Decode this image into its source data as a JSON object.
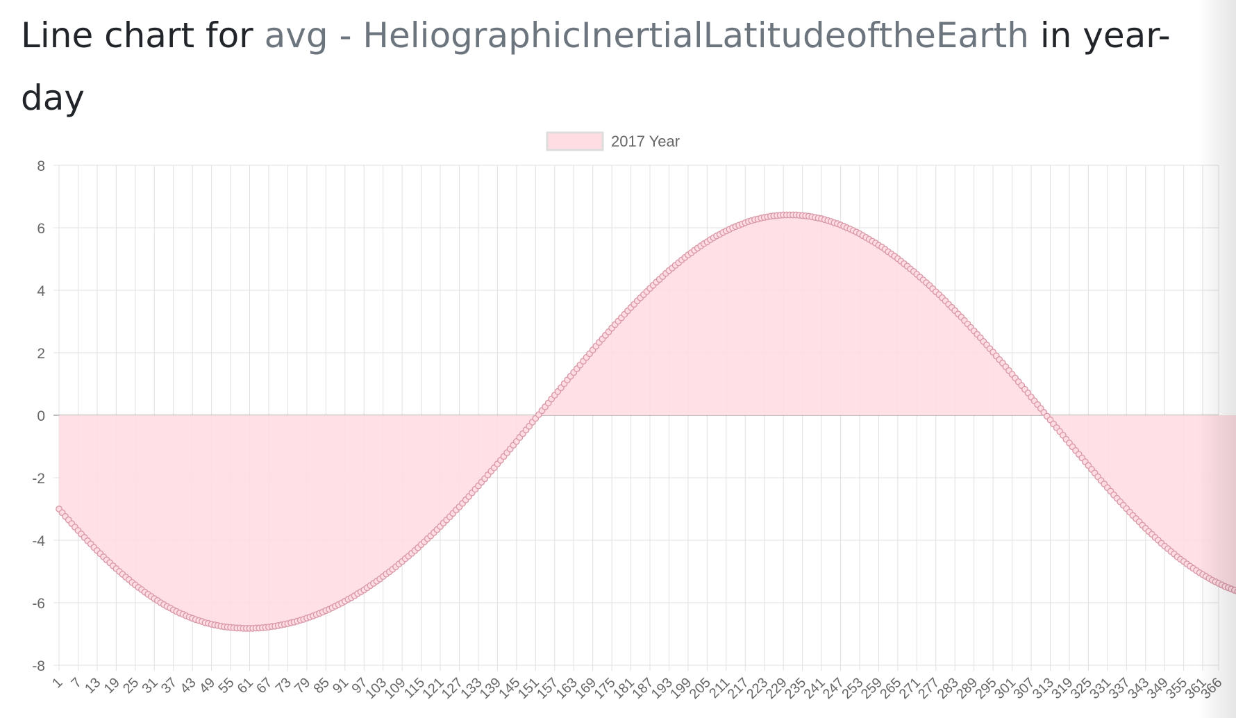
{
  "title": {
    "prefix": "Line chart for ",
    "metric": "avg - HeliographicInertialLatitudeoftheEarth",
    "suffix": " in year-day"
  },
  "colors": {
    "fill": "#ffdde3",
    "line": "#e8a7b5",
    "point": "#d99aaa",
    "grid": "#e0e0e0",
    "zero_line": "#9a9a9a",
    "tick_text": "#666666"
  },
  "chart_data": {
    "type": "area",
    "legend": {
      "label": "2017 Year",
      "position": "top"
    },
    "x": {
      "min": 1,
      "max": 366,
      "tick_step": 6,
      "last_tick": 366
    },
    "ylim": [
      -8,
      8
    ],
    "yticks": [
      8,
      6,
      4,
      2,
      0,
      -2,
      -4,
      -6,
      -8
    ],
    "grid": true,
    "series": [
      {
        "name": "2017 Year",
        "values": [
          -3.0,
          -3.12,
          -3.24,
          -3.35,
          -3.47,
          -3.58,
          -3.69,
          -3.8,
          -3.91,
          -4.02,
          -4.12,
          -4.23,
          -4.33,
          -4.43,
          -4.53,
          -4.63,
          -4.72,
          -4.82,
          -4.91,
          -5.0,
          -5.09,
          -5.18,
          -5.26,
          -5.35,
          -5.43,
          -5.51,
          -5.58,
          -5.66,
          -5.73,
          -5.8,
          -5.87,
          -5.93,
          -6.0,
          -6.06,
          -6.12,
          -6.17,
          -6.23,
          -6.28,
          -6.33,
          -6.37,
          -6.42,
          -6.46,
          -6.5,
          -6.54,
          -6.57,
          -6.6,
          -6.64,
          -6.66,
          -6.69,
          -6.71,
          -6.73,
          -6.75,
          -6.77,
          -6.78,
          -6.79,
          -6.8,
          -6.81,
          -6.81,
          -6.82,
          -6.82,
          -6.82,
          -6.82,
          -6.81,
          -6.81,
          -6.8,
          -6.79,
          -6.78,
          -6.76,
          -6.75,
          -6.73,
          -6.71,
          -6.69,
          -6.67,
          -6.64,
          -6.62,
          -6.59,
          -6.56,
          -6.53,
          -6.49,
          -6.46,
          -6.42,
          -6.38,
          -6.34,
          -6.3,
          -6.25,
          -6.21,
          -6.16,
          -6.11,
          -6.06,
          -6.01,
          -5.95,
          -5.89,
          -5.84,
          -5.78,
          -5.71,
          -5.65,
          -5.59,
          -5.52,
          -5.45,
          -5.38,
          -5.31,
          -5.24,
          -5.16,
          -5.08,
          -5.01,
          -4.93,
          -4.85,
          -4.76,
          -4.68,
          -4.59,
          -4.51,
          -4.42,
          -4.33,
          -4.24,
          -4.14,
          -4.05,
          -3.95,
          -3.86,
          -3.76,
          -3.66,
          -3.56,
          -3.45,
          -3.35,
          -3.25,
          -3.14,
          -3.03,
          -2.93,
          -2.82,
          -2.71,
          -2.6,
          -2.48,
          -2.37,
          -2.26,
          -2.14,
          -2.03,
          -1.91,
          -1.79,
          -1.68,
          -1.56,
          -1.44,
          -1.32,
          -1.2,
          -1.08,
          -0.96,
          -0.84,
          -0.71,
          -0.59,
          -0.47,
          -0.35,
          -0.22,
          -0.1,
          0.02,
          0.15,
          0.27,
          0.39,
          0.52,
          0.64,
          0.76,
          0.88,
          1.01,
          1.13,
          1.25,
          1.37,
          1.49,
          1.61,
          1.73,
          1.85,
          1.97,
          2.09,
          2.21,
          2.33,
          2.44,
          2.56,
          2.67,
          2.79,
          2.9,
          3.01,
          3.12,
          3.23,
          3.34,
          3.45,
          3.55,
          3.66,
          3.76,
          3.86,
          3.96,
          4.06,
          4.16,
          4.26,
          4.35,
          4.44,
          4.54,
          4.63,
          4.71,
          4.8,
          4.88,
          4.97,
          5.05,
          5.13,
          5.2,
          5.28,
          5.35,
          5.42,
          5.49,
          5.55,
          5.62,
          5.68,
          5.74,
          5.79,
          5.85,
          5.9,
          5.95,
          6.0,
          6.04,
          6.08,
          6.12,
          6.16,
          6.2,
          6.23,
          6.26,
          6.28,
          6.31,
          6.33,
          6.35,
          6.37,
          6.38,
          6.39,
          6.4,
          6.41,
          6.41,
          6.41,
          6.41,
          6.41,
          6.4,
          6.39,
          6.38,
          6.37,
          6.35,
          6.33,
          6.31,
          6.29,
          6.26,
          6.23,
          6.2,
          6.16,
          6.13,
          6.09,
          6.05,
          6.0,
          5.96,
          5.91,
          5.86,
          5.81,
          5.75,
          5.69,
          5.63,
          5.57,
          5.51,
          5.44,
          5.38,
          5.31,
          5.23,
          5.16,
          5.09,
          5.01,
          4.93,
          4.85,
          4.77,
          4.68,
          4.6,
          4.51,
          4.42,
          4.33,
          4.24,
          4.15,
          4.05,
          3.95,
          3.86,
          3.76,
          3.66,
          3.55,
          3.45,
          3.35,
          3.24,
          3.14,
          3.03,
          2.92,
          2.81,
          2.7,
          2.59,
          2.48,
          2.36,
          2.25,
          2.13,
          2.02,
          1.9,
          1.78,
          1.67,
          1.55,
          1.43,
          1.31,
          1.19,
          1.07,
          0.95,
          0.83,
          0.71,
          0.58,
          0.46,
          0.34,
          0.22,
          0.09,
          -0.03,
          -0.15,
          -0.28,
          -0.4,
          -0.52,
          -0.64,
          -0.77,
          -0.89,
          -1.01,
          -1.13,
          -1.25,
          -1.37,
          -1.49,
          -1.61,
          -1.73,
          -1.85,
          -1.97,
          -2.09,
          -2.2,
          -2.32,
          -2.43,
          -2.55,
          -2.66,
          -2.77,
          -2.88,
          -2.99,
          -3.1,
          -3.21,
          -3.31,
          -3.41,
          -3.52,
          -3.62,
          -3.72,
          -3.81,
          -3.91,
          -4.0,
          -4.1,
          -4.19,
          -4.27,
          -4.36,
          -4.44,
          -4.53,
          -4.61,
          -4.68,
          -4.76,
          -4.83,
          -4.9,
          -4.97,
          -5.04,
          -5.1,
          -5.16,
          -5.22,
          -5.28,
          -5.33,
          -5.38,
          -5.43,
          -5.48,
          -5.52,
          -5.56,
          -5.6,
          -5.64,
          -5.67,
          -5.7,
          -5.73,
          -5.75,
          -5.77,
          -5.79,
          -5.81,
          -5.82,
          -5.83,
          -5.84,
          -5.84,
          -5.84,
          -5.84,
          -5.84,
          -5.83,
          -5.82,
          -5.81,
          -5.79,
          -5.77,
          -5.75,
          -5.73,
          -5.7,
          -5.67,
          -5.64,
          -5.6,
          -5.57,
          -5.53,
          -5.48,
          -5.44,
          -5.39,
          -5.34,
          -5.29,
          -5.24,
          -5.18,
          -5.12,
          -5.06,
          -5.0,
          -4.93,
          -4.87,
          -4.8,
          -4.73,
          -4.65,
          -4.58,
          -4.5,
          -4.42,
          -4.34,
          -4.26,
          -4.18,
          -4.09,
          -4.0,
          -3.91,
          -3.82,
          -3.73,
          -3.64,
          -3.54,
          -3.45,
          -3.35,
          -3.25,
          -3.15,
          -3.05,
          -2.95,
          -2.85,
          -2.74,
          -2.64
        ]
      }
    ]
  }
}
